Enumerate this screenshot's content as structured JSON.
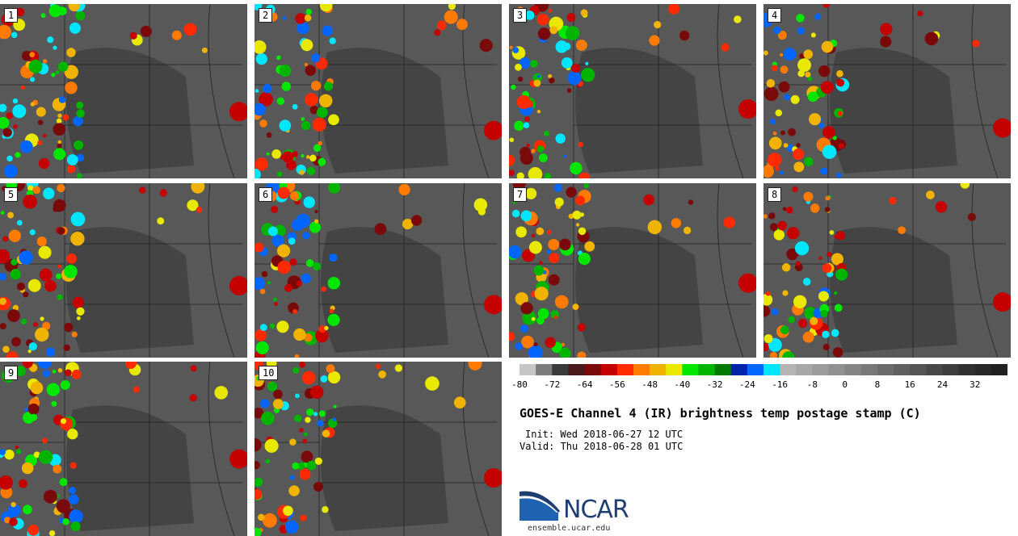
{
  "panels": [
    {
      "label": "1"
    },
    {
      "label": "2"
    },
    {
      "label": "3"
    },
    {
      "label": "4"
    },
    {
      "label": "5"
    },
    {
      "label": "6"
    },
    {
      "label": "7"
    },
    {
      "label": "8"
    },
    {
      "label": "9"
    },
    {
      "label": "10"
    }
  ],
  "colorbar": {
    "colors": [
      "#c6c6c6",
      "#7d7d7d",
      "#3a3a3a",
      "#4a1a1a",
      "#7a0a0a",
      "#c40000",
      "#ff2a00",
      "#ff7a00",
      "#f0b400",
      "#e8e800",
      "#00e600",
      "#00b400",
      "#007a00",
      "#0022aa",
      "#0066ff",
      "#00e6ff",
      "#b4b4b4",
      "#a8a8a8",
      "#9c9c9c",
      "#909090",
      "#848484",
      "#787878",
      "#6c6c6c",
      "#606060",
      "#545454",
      "#484848",
      "#3c3c3c",
      "#303030",
      "#282828",
      "#202020"
    ],
    "tick_labels": [
      "-80",
      "-72",
      "-64",
      "-56",
      "-48",
      "-40",
      "-32",
      "-24",
      "-16",
      "-8",
      "0",
      "8",
      "16",
      "24",
      "32"
    ]
  },
  "title": "GOES-E Channel 4 (IR) brightness temp postage stamp (C)",
  "init": "Init: Wed 2018-06-27 12 UTC",
  "valid": "Valid: Thu 2018-06-28 01 UTC",
  "logo": {
    "text": "NCAR",
    "url": "ensemble.ucar.edu"
  }
}
